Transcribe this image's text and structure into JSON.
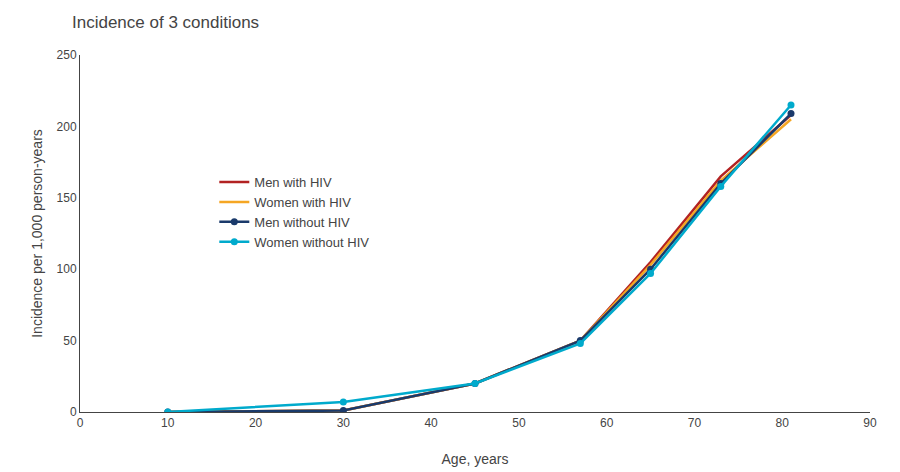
{
  "chart_data": {
    "type": "line",
    "title": "Incidence of 3 conditions",
    "x_label": "Age, years",
    "y_label": "Incidence per 1,000 person-years",
    "x": [
      10,
      30,
      45,
      57,
      65,
      73,
      81
    ],
    "series": [
      {
        "name": "Men with HIV",
        "color": "#b22222",
        "values": [
          0,
          1,
          20,
          50,
          105,
          165,
          208
        ]
      },
      {
        "name": "Women with HIV",
        "color": "#f5a623",
        "values": [
          0,
          1,
          20,
          50,
          103,
          162,
          205
        ]
      },
      {
        "name": "Men without HIV",
        "color": "#1a3a6b",
        "marker": "circle",
        "values": [
          0,
          1,
          20,
          50,
          100,
          160,
          209
        ]
      },
      {
        "name": "Women without HIV",
        "color": "#00aacc",
        "marker": "circle",
        "values": [
          0,
          7,
          20,
          48,
          97,
          158,
          215
        ]
      }
    ],
    "xlim": [
      0,
      90
    ],
    "ylim": [
      0,
      250
    ],
    "xticks": [
      0,
      10,
      20,
      30,
      40,
      50,
      60,
      70,
      80,
      90
    ],
    "yticks": [
      0,
      50,
      100,
      150,
      200,
      250
    ],
    "grid": false,
    "legend": "left"
  }
}
